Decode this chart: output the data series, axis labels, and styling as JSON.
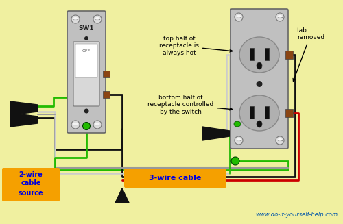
{
  "bg_color": "#f0f0a0",
  "watermark": "www.do-it-yourself-help.com",
  "label_2wire": "2-wire\ncable",
  "label_2wire_src": "source",
  "label_3wire": "3-wire cable",
  "label_top": "top half of\nreceptacle is\nalways hot",
  "label_bottom": "bottom half of\nreceptacle controlled\nby the switch",
  "label_tab": "tab\nremoved",
  "label_sw1": "SW1",
  "label_off": "OFF",
  "orange_color": "#f5a000",
  "blue_color": "#0000dd",
  "green_wire": "#22bb00",
  "black_wire": "#111111",
  "red_wire": "#cc0000",
  "white_wire": "#cccccc",
  "gray_wire": "#999999",
  "plate_color": "#c0c0c0",
  "outlet_face": "#b8b8b8",
  "screw_brown": "#8B4513"
}
